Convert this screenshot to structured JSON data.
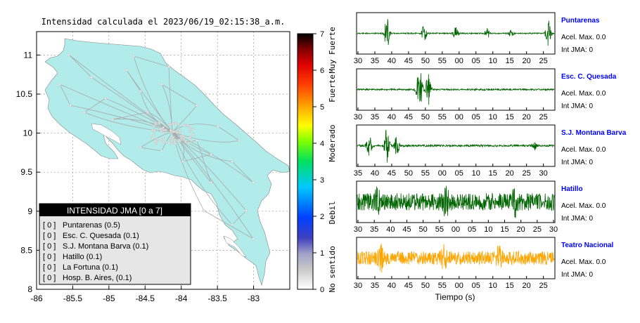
{
  "map": {
    "title": "Intensidad calculada el 2023/06/19_02:15:38_a.m.",
    "x_ticks": [
      "-86",
      "-85.5",
      "-85",
      "-84.5",
      "-84",
      "-83.5",
      "-83"
    ],
    "y_ticks": [
      "11",
      "10.5",
      "10",
      "9.5",
      "9",
      "8.5",
      "8"
    ],
    "xlim": [
      -86,
      -82.5
    ],
    "ylim": [
      8,
      11.3
    ],
    "land_color": "#b1ebea"
  },
  "colorbar": {
    "ticks": [
      "0",
      "1",
      "2",
      "3",
      "4",
      "5",
      "6",
      "7"
    ],
    "range": [
      0,
      7
    ],
    "categories": [
      "No sentido",
      "Debil",
      "Moderado",
      "Fuerte",
      "Muy Fuerte"
    ],
    "colors": [
      "#ffffff",
      "#b4b4b4",
      "#0000a0",
      "#0064ff",
      "#00d2ff",
      "#00e600",
      "#ffff00",
      "#ff9600",
      "#ff0000",
      "#000000"
    ]
  },
  "legend": {
    "title": "INTENSIDAD JMA [0 a 7]",
    "rows": [
      {
        "level": "[ 0 ]",
        "station": "Puntarenas (0.5)"
      },
      {
        "level": "[ 0 ]",
        "station": "Esc. C. Quesada (0.1)"
      },
      {
        "level": "[ 0 ]",
        "station": "S.J. Montana Barva (0.1)"
      },
      {
        "level": "[ 0 ]",
        "station": "Hatillo (0.1)"
      },
      {
        "level": "[ 0 ]",
        "station": "La Fortuna (0.1)"
      },
      {
        "level": "[ 0 ]",
        "station": "Hosp. B. Aires, (0.1)"
      }
    ]
  },
  "chart_data": [
    {
      "type": "map",
      "title": "Intensidad calculada el 2023/06/19_02:15:38_a.m.",
      "x_ticks": [
        -86,
        -85.5,
        -85,
        -84.5,
        -84,
        -83.5,
        -83
      ],
      "y_ticks": [
        11,
        10.5,
        10,
        9.5,
        9,
        8.5,
        8
      ]
    },
    {
      "type": "line",
      "xlabel": "Tiempo (s)",
      "series": [
        {
          "name": "Puntarenas",
          "acel_label": "Acel. Max. 0.0",
          "int_label": "Int JMA: 0",
          "color": "#006400",
          "x_tick_labels": [
            "30",
            "35",
            "40",
            "45",
            "50",
            "55",
            "00",
            "05",
            "10",
            "15",
            "20",
            "25"
          ],
          "bursts": [
            [
              0.15,
              0.9
            ],
            [
              0.34,
              0.45
            ],
            [
              0.5,
              0.35
            ],
            [
              0.66,
              0.25
            ],
            [
              0.78,
              0.2
            ],
            [
              0.97,
              0.8
            ]
          ],
          "noise": 0.03
        },
        {
          "name": "Esc. C. Quesada",
          "acel_label": "Acel. Max. 0.0",
          "int_label": "Int JMA: 0",
          "color": "#006400",
          "x_tick_labels": [
            "30",
            "35",
            "40",
            "45",
            "50",
            "55",
            "00",
            "05",
            "10",
            "15",
            "20",
            "25"
          ],
          "bursts": [
            [
              0.32,
              0.8
            ],
            [
              0.36,
              0.9
            ],
            [
              0.31,
              0.6
            ]
          ],
          "noise": 0.04
        },
        {
          "name": "S.J. Montana Barva",
          "acel_label": "Acel. Max. 0.0",
          "int_label": "Int JMA: 0",
          "color": "#006400",
          "x_tick_labels": [
            "35",
            "40",
            "45",
            "50",
            "55",
            "00",
            "05",
            "10",
            "15",
            "20",
            "25",
            "30"
          ],
          "bursts": [
            [
              0.06,
              0.6
            ],
            [
              0.15,
              0.9
            ],
            [
              0.2,
              0.5
            ],
            [
              0.9,
              0.2
            ]
          ],
          "noise": 0.05
        },
        {
          "name": "Hatillo",
          "acel_label": "Acel. Max. 0.0",
          "int_label": "Int JMA: 0",
          "color": "#006400",
          "x_tick_labels": [
            "30",
            "35",
            "40",
            "45",
            "50",
            "55",
            "00",
            "05",
            "10",
            "15",
            "20",
            "25",
            "30"
          ],
          "bursts": [
            [
              0.1,
              0.5
            ],
            [
              0.45,
              0.5
            ],
            [
              0.8,
              0.5
            ]
          ],
          "noise": 0.45
        },
        {
          "name": "Teatro Nacional",
          "acel_label": "Acel. Max. 0.0",
          "int_label": "Int JMA: 0",
          "color": "#ffa500",
          "x_tick_labels": [
            "30",
            "35",
            "40",
            "45",
            "50",
            "55",
            "00",
            "05",
            "10",
            "15",
            "20",
            "25"
          ],
          "bursts": [
            [
              0.12,
              0.5
            ],
            [
              0.44,
              0.5
            ],
            [
              0.72,
              0.45
            ]
          ],
          "noise": 0.35
        }
      ]
    }
  ]
}
